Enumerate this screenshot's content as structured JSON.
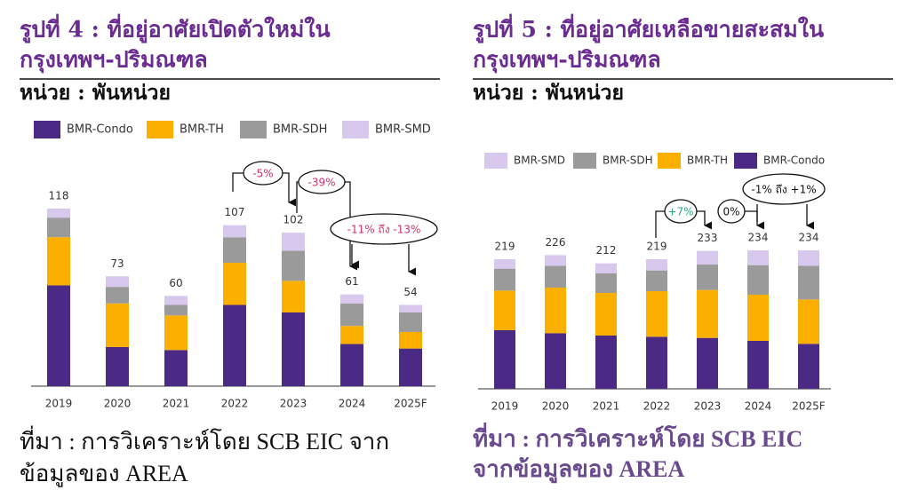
{
  "chart_data": [
    {
      "type": "bar",
      "stacked": true,
      "title": [
        "รูปที่ 4 : ที่อยู่อาศัยเปิดตัวใหม่ใน",
        "กรุงเทพฯ-ปริมณฑล"
      ],
      "unit": "หน่วย : พันหน่วย",
      "source": [
        "ที่มา : การวิเคราะห์โดย SCB EIC จาก",
        "ข้อมูลของ AREA"
      ],
      "categories": [
        "2019",
        "2020",
        "2021",
        "2022",
        "2023",
        "2024",
        "2025F"
      ],
      "series": [
        {
          "name": "BMR-Condo",
          "color": "#4b2a86",
          "values": [
            67,
            26,
            24,
            54,
            49,
            28,
            25
          ]
        },
        {
          "name": "BMR-TH",
          "color": "#fbb000",
          "values": [
            32,
            29,
            23,
            28,
            21,
            12,
            11
          ]
        },
        {
          "name": "BMR-SDH",
          "color": "#9a9a9a",
          "values": [
            13,
            11,
            7,
            17,
            20,
            15,
            13
          ]
        },
        {
          "name": "BMR-SMD",
          "color": "#d9c8ee",
          "values": [
            6,
            7,
            6,
            8,
            12,
            6,
            5
          ]
        }
      ],
      "totals": [
        118,
        73,
        60,
        107,
        102,
        61,
        54
      ],
      "annotations": [
        "-5%",
        "-39%",
        "-11% ถึง -13%"
      ],
      "legend_reversed": false
    },
    {
      "type": "bar",
      "stacked": true,
      "title": [
        "รูปที่ 5 : ที่อยู่อาศัยเหลือขายสะสมใน",
        "กรุงเทพฯ-ปริมณฑล"
      ],
      "unit": "หน่วย : พันหน่วย",
      "source": [
        "ที่มา : การวิเคราะห์โดย SCB EIC",
        "จากข้อมูลของ AREA"
      ],
      "categories": [
        "2019",
        "2020",
        "2021",
        "2022",
        "2023",
        "2024",
        "2025F"
      ],
      "series": [
        {
          "name": "BMR-Condo",
          "color": "#4b2a86",
          "values": [
            99,
            94,
            90,
            88,
            86,
            81,
            76
          ]
        },
        {
          "name": "BMR-TH",
          "color": "#fbb000",
          "values": [
            67,
            77,
            72,
            77,
            81,
            78,
            75
          ]
        },
        {
          "name": "BMR-SDH",
          "color": "#9a9a9a",
          "values": [
            37,
            37,
            33,
            35,
            43,
            50,
            57
          ]
        },
        {
          "name": "BMR-SMD",
          "color": "#d9c8ee",
          "values": [
            16,
            18,
            17,
            19,
            23,
            25,
            26
          ]
        }
      ],
      "totals": [
        219,
        226,
        212,
        219,
        233,
        234,
        234
      ],
      "annotations": [
        "+7%",
        "0%",
        "-1% ถึง +1%"
      ],
      "legend_reversed": true
    }
  ]
}
